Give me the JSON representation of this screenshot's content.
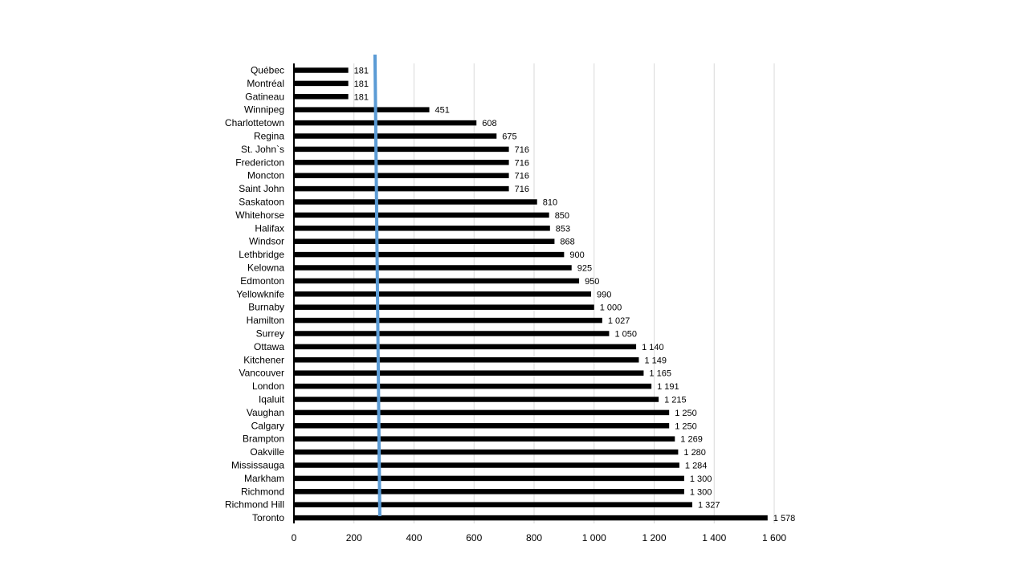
{
  "chart_data": {
    "type": "bar",
    "orientation": "horizontal",
    "title": "",
    "xlabel": "",
    "ylabel": "",
    "xlim": [
      0,
      1600
    ],
    "grid": true,
    "legend": "none",
    "categories": [
      "Québec",
      "Montréal",
      "Gatineau",
      "Winnipeg",
      "Charlottetown",
      "Regina",
      "St. John`s",
      "Fredericton",
      "Moncton",
      "Saint John",
      "Saskatoon",
      "Whitehorse",
      "Halifax",
      "Windsor",
      "Lethbridge",
      "Kelowna",
      "Edmonton",
      "Yellowknife",
      "Burnaby",
      "Hamilton",
      "Surrey",
      "Ottawa",
      "Kitchener",
      "Vancouver",
      "London",
      "Iqaluit",
      "Vaughan",
      "Calgary",
      "Brampton",
      "Oakville",
      "Mississauga",
      "Markham",
      "Richmond",
      "Richmond Hill",
      "Toronto"
    ],
    "values": [
      181,
      181,
      181,
      451,
      608,
      675,
      716,
      716,
      716,
      716,
      810,
      850,
      853,
      868,
      900,
      925,
      950,
      990,
      1000,
      1027,
      1050,
      1140,
      1149,
      1165,
      1191,
      1215,
      1250,
      1250,
      1269,
      1280,
      1284,
      1300,
      1300,
      1327,
      1578
    ],
    "value_labels": [
      "181",
      "181",
      "181",
      "451",
      "608",
      "675",
      "716",
      "716",
      "716",
      "716",
      "810",
      "850",
      "853",
      "868",
      "900",
      "925",
      "950",
      "990",
      "1 000",
      "1 027",
      "1 050",
      "1 140",
      "1 149",
      "1 165",
      "1 191",
      "1 215",
      "1 250",
      "1 250",
      "1 269",
      "1 280",
      "1 284",
      "1 300",
      "1 300",
      "1 327",
      "1 578"
    ],
    "ticks": [
      0,
      200,
      400,
      600,
      800,
      1000,
      1200,
      1400,
      1600
    ],
    "tick_labels": [
      "0",
      "200",
      "400",
      "600",
      "800",
      "1 000",
      "1 200",
      "1 400",
      "1 600"
    ],
    "reference_line": {
      "x_start": 270,
      "x_end": 286
    },
    "colors": {
      "bar": "#000000",
      "grid": "#d9d9d9",
      "axis": "#000000",
      "reference_line": "#5b9bd5"
    }
  }
}
